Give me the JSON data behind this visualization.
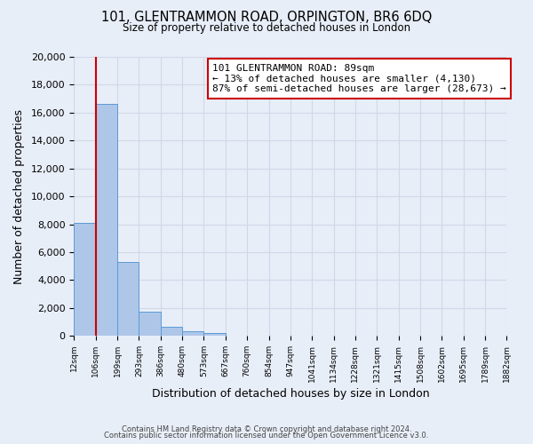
{
  "title_line1": "101, GLENTRAMMON ROAD, ORPINGTON, BR6 6DQ",
  "title_line2": "Size of property relative to detached houses in London",
  "xlabel": "Distribution of detached houses by size in London",
  "ylabel": "Number of detached properties",
  "bin_labels": [
    "12sqm",
    "106sqm",
    "199sqm",
    "293sqm",
    "386sqm",
    "480sqm",
    "573sqm",
    "667sqm",
    "760sqm",
    "854sqm",
    "947sqm",
    "1041sqm",
    "1134sqm",
    "1228sqm",
    "1321sqm",
    "1415sqm",
    "1508sqm",
    "1602sqm",
    "1695sqm",
    "1789sqm",
    "1882sqm"
  ],
  "bar_heights": [
    8100,
    16600,
    5300,
    1750,
    650,
    300,
    200,
    0,
    0,
    0,
    0,
    0,
    0,
    0,
    0,
    0,
    0,
    0,
    0,
    0
  ],
  "bar_color": "#aec6e8",
  "bar_edge_color": "#5b9bd5",
  "ylim": [
    0,
    20000
  ],
  "yticks": [
    0,
    2000,
    4000,
    6000,
    8000,
    10000,
    12000,
    14000,
    16000,
    18000,
    20000
  ],
  "vline_x": 1,
  "vline_color": "#cc0000",
  "annotation_title": "101 GLENTRAMMON ROAD: 89sqm",
  "annotation_line1": "← 13% of detached houses are smaller (4,130)",
  "annotation_line2": "87% of semi-detached houses are larger (28,673) →",
  "annotation_box_color": "#ffffff",
  "annotation_box_edge": "#cc0000",
  "footer1": "Contains HM Land Registry data © Crown copyright and database right 2024.",
  "footer2": "Contains public sector information licensed under the Open Government Licence v3.0.",
  "grid_color": "#d0d8e8",
  "background_color": "#e8eef8"
}
